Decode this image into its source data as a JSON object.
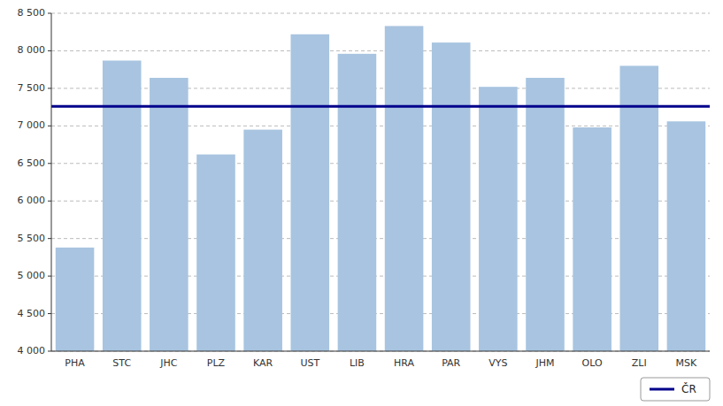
{
  "chart_data": {
    "type": "bar",
    "categories": [
      "PHA",
      "STC",
      "JHC",
      "PLZ",
      "KAR",
      "UST",
      "LIB",
      "HRA",
      "PAR",
      "VYS",
      "JHM",
      "OLO",
      "ZLI",
      "MSK"
    ],
    "values": [
      5380,
      7870,
      7640,
      6620,
      6950,
      8220,
      7960,
      8330,
      8110,
      7520,
      7640,
      6980,
      7800,
      7060
    ],
    "color": "#a8c4e0",
    "ylim": [
      4000,
      8500
    ],
    "yticks": [
      {
        "value": 4000,
        "label": "4 000"
      },
      {
        "value": 4500,
        "label": "4 500"
      },
      {
        "value": 5000,
        "label": "5 000"
      },
      {
        "value": 5500,
        "label": "5 500"
      },
      {
        "value": 6000,
        "label": "6 000"
      },
      {
        "value": 6500,
        "label": "6 500"
      },
      {
        "value": 7000,
        "label": "7 000"
      },
      {
        "value": 7500,
        "label": "7 500"
      },
      {
        "value": 8000,
        "label": "8 000"
      },
      {
        "value": 8500,
        "label": "8 500"
      }
    ],
    "grid": true,
    "legend": "lower right",
    "reference_line": {
      "name": "ČR",
      "value": 7260,
      "color": "#00008b"
    }
  }
}
